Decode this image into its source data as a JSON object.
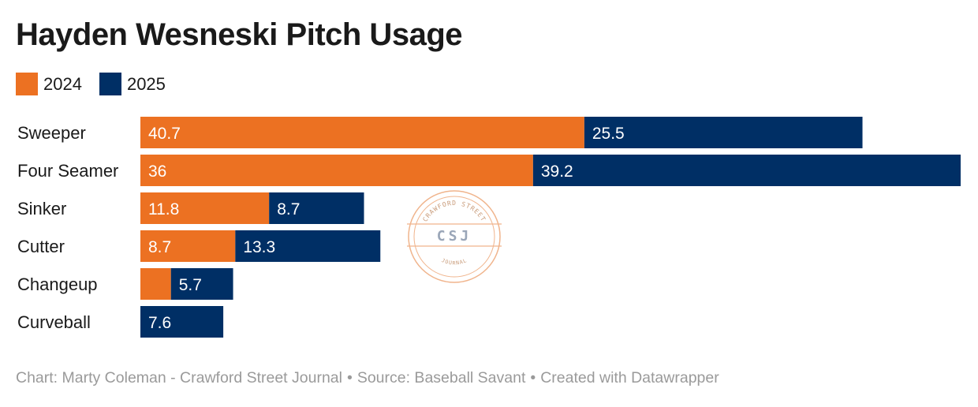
{
  "header": {
    "title": "Hayden Wesneski Pitch Usage"
  },
  "legend": [
    {
      "label": "2024",
      "color": "#ec7122"
    },
    {
      "label": "2025",
      "color": "#002f65"
    }
  ],
  "chart_data": {
    "type": "bar",
    "orientation": "horizontal",
    "stacked": true,
    "title": "Hayden Wesneski Pitch Usage",
    "categories": [
      "Sweeper",
      "Four Seamer",
      "Sinker",
      "Cutter",
      "Changeup",
      "Curveball"
    ],
    "series": [
      {
        "name": "2024",
        "color": "#ec7122",
        "values": [
          40.7,
          36,
          11.8,
          8.7,
          2.8,
          0
        ],
        "labels": [
          "40.7",
          "36",
          "11.8",
          "8.7",
          "",
          ""
        ]
      },
      {
        "name": "2025",
        "color": "#002f65",
        "values": [
          25.5,
          39.2,
          8.7,
          13.3,
          5.7,
          7.6
        ],
        "labels": [
          "25.5",
          "39.2",
          "8.7",
          "13.3",
          "5.7",
          "7.6"
        ]
      }
    ],
    "xlim": [
      0,
      75.2
    ],
    "xlabel": "",
    "ylabel": "",
    "grid": false,
    "legend_position": "top-left"
  },
  "watermark": {
    "top": "CRAWFORD STREET",
    "center": "CSJ",
    "bottom": "JOURNAL"
  },
  "footer": {
    "credit": "Chart: Marty Coleman - Crawford Street Journal",
    "source": "Source: Baseball Savant",
    "tool": "Created with Datawrapper",
    "separator": "•"
  }
}
